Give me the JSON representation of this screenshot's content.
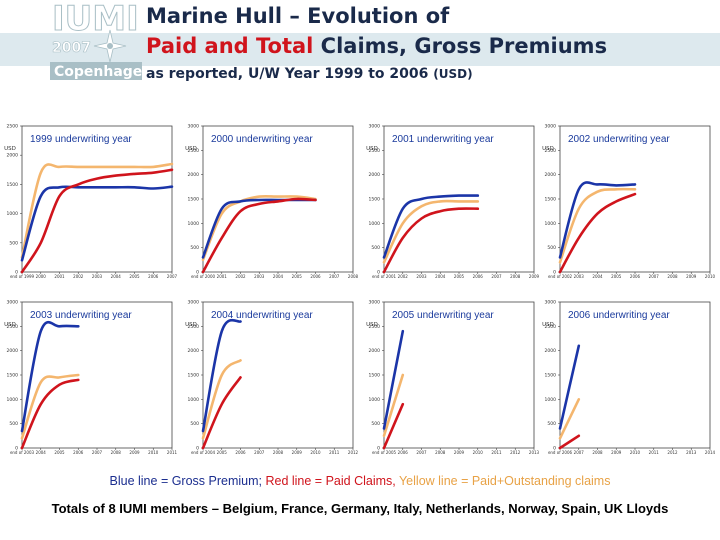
{
  "header": {
    "title_line1": "Marine Hull – Evolution of",
    "title_line2_red": "Paid and Total",
    "title_line2_rest": " Claims, Gross Premiums",
    "subtitle_main": "as reported, U/W Year 1999 to 2006 ",
    "subtitle_small": "(USD)"
  },
  "logo": {
    "text_top": "IUMI",
    "text_year": "2007",
    "text_city": "Copenhagen"
  },
  "colors": {
    "premium": "#1b35a8",
    "paid": "#d0141c",
    "outstanding": "#f4b66e",
    "navy": "#1a2a4a"
  },
  "legend": {
    "blue": "Blue line = Gross Premium;",
    "red": " Red line = Paid Claims,",
    "yellow": " Yellow line = Paid+Outstanding claims"
  },
  "footer": "Totals of 8 IUMI members –  Belgium, France, Germany, Italy, Netherlands, Norway, Spain, UK Lloyds",
  "chart_data": [
    {
      "type": "line",
      "title": "1999 underwriting year",
      "ylabel": "USD",
      "ylim": [
        0,
        2500
      ],
      "yticks": [
        "0",
        "500",
        "1000",
        "1500",
        "2000",
        "2500"
      ],
      "xticks": [
        "end of 1999",
        "2000",
        "2001",
        "2002",
        "2003",
        "2004",
        "2005",
        "2006",
        "2007"
      ],
      "series": [
        {
          "name": "Gross Premium",
          "values": [
            200,
            1300,
            1450,
            1450,
            1450,
            1450,
            1450,
            1430,
            1460
          ]
        },
        {
          "name": "Paid Claims",
          "values": [
            0,
            500,
            1300,
            1500,
            1600,
            1650,
            1680,
            1700,
            1750
          ]
        },
        {
          "name": "Paid+Outstanding claims",
          "values": [
            250,
            1700,
            1800,
            1800,
            1800,
            1800,
            1800,
            1800,
            1850
          ]
        }
      ]
    },
    {
      "type": "line",
      "title": "2000 underwriting year",
      "ylabel": "USD",
      "ylim": [
        0,
        3000
      ],
      "yticks": [
        "0",
        "500",
        "1000",
        "1500",
        "2000",
        "2500",
        "3000"
      ],
      "xticks": [
        "end of 2000",
        "2001",
        "2002",
        "2003",
        "2004",
        "2005",
        "2006",
        "2007",
        "2008"
      ],
      "series": [
        {
          "name": "Gross Premium",
          "values": [
            300,
            1300,
            1450,
            1480,
            1480,
            1480,
            1480
          ]
        },
        {
          "name": "Paid Claims",
          "values": [
            0,
            700,
            1250,
            1400,
            1450,
            1500,
            1480
          ]
        },
        {
          "name": "Paid+Outstanding claims",
          "values": [
            250,
            1200,
            1450,
            1550,
            1550,
            1550,
            1500
          ]
        }
      ]
    },
    {
      "type": "line",
      "title": "2001 underwriting year",
      "ylabel": "USD",
      "ylim": [
        0,
        3000
      ],
      "yticks": [
        "0",
        "500",
        "1000",
        "1500",
        "2000",
        "2500",
        "3000"
      ],
      "xticks": [
        "end of 2001",
        "2002",
        "2003",
        "2004",
        "2005",
        "2006",
        "2007",
        "2008",
        "2009"
      ],
      "series": [
        {
          "name": "Gross Premium",
          "values": [
            300,
            1300,
            1500,
            1550,
            1570,
            1570
          ]
        },
        {
          "name": "Paid Claims",
          "values": [
            0,
            700,
            1100,
            1250,
            1300,
            1300
          ]
        },
        {
          "name": "Paid+Outstanding claims",
          "values": [
            200,
            1000,
            1350,
            1450,
            1450,
            1450
          ]
        }
      ]
    },
    {
      "type": "line",
      "title": "2002 underwriting year",
      "ylabel": "USD",
      "ylim": [
        0,
        3000
      ],
      "yticks": [
        "0",
        "500",
        "1000",
        "1500",
        "2000",
        "2500",
        "3000"
      ],
      "xticks": [
        "end of 2002",
        "2003",
        "2004",
        "2005",
        "2006",
        "2007",
        "2008",
        "2009",
        "2010"
      ],
      "series": [
        {
          "name": "Gross Premium",
          "values": [
            300,
            1700,
            1800,
            1780,
            1800
          ]
        },
        {
          "name": "Paid Claims",
          "values": [
            0,
            700,
            1200,
            1450,
            1600
          ]
        },
        {
          "name": "Paid+Outstanding claims",
          "values": [
            200,
            1300,
            1650,
            1700,
            1700
          ]
        }
      ]
    },
    {
      "type": "line",
      "title": "2003 underwriting year",
      "ylabel": "USD",
      "ylim": [
        0,
        3000
      ],
      "yticks": [
        "0",
        "500",
        "1000",
        "1500",
        "2000",
        "2500",
        "3000"
      ],
      "xticks": [
        "end of 2003",
        "2004",
        "2005",
        "2006",
        "2007",
        "2008",
        "2009",
        "2010",
        "2011"
      ],
      "series": [
        {
          "name": "Gross Premium",
          "values": [
            350,
            2400,
            2500,
            2500
          ]
        },
        {
          "name": "Paid Claims",
          "values": [
            0,
            900,
            1300,
            1400
          ]
        },
        {
          "name": "Paid+Outstanding claims",
          "values": [
            200,
            1350,
            1450,
            1500
          ]
        }
      ]
    },
    {
      "type": "line",
      "title": "2004 underwriting year",
      "ylabel": "USD",
      "ylim": [
        0,
        3000
      ],
      "yticks": [
        "0",
        "500",
        "1000",
        "1500",
        "2000",
        "2500",
        "3000"
      ],
      "xticks": [
        "end of 2004",
        "2005",
        "2006",
        "2007",
        "2008",
        "2009",
        "2010",
        "2011",
        "2012"
      ],
      "series": [
        {
          "name": "Gross Premium",
          "values": [
            350,
            2400,
            2600
          ]
        },
        {
          "name": "Paid Claims",
          "values": [
            0,
            900,
            1450
          ]
        },
        {
          "name": "Paid+Outstanding claims",
          "values": [
            200,
            1500,
            1800
          ]
        }
      ]
    },
    {
      "type": "line",
      "title": "2005 underwriting year",
      "ylabel": "USD",
      "ylim": [
        0,
        3000
      ],
      "yticks": [
        "0",
        "500",
        "1000",
        "1500",
        "2000",
        "2500",
        "3000"
      ],
      "xticks": [
        "end of 2005",
        "2006",
        "2007",
        "2008",
        "2009",
        "2010",
        "2011",
        "2012",
        "2013"
      ],
      "series": [
        {
          "name": "Gross Premium",
          "values": [
            400,
            2400
          ]
        },
        {
          "name": "Paid Claims",
          "values": [
            0,
            900
          ]
        },
        {
          "name": "Paid+Outstanding claims",
          "values": [
            250,
            1500
          ]
        }
      ]
    },
    {
      "type": "line",
      "title": "2006 underwriting year",
      "ylabel": "USD",
      "ylim": [
        0,
        3000
      ],
      "yticks": [
        "0",
        "500",
        "1000",
        "1500",
        "2000",
        "2500",
        "3000"
      ],
      "xticks": [
        "end of 2006",
        "2007",
        "2008",
        "2009",
        "2010",
        "2011",
        "2012",
        "2013",
        "2014"
      ],
      "series": [
        {
          "name": "Gross Premium",
          "values": [
            400,
            2100
          ]
        },
        {
          "name": "Paid Claims",
          "values": [
            0,
            250
          ]
        },
        {
          "name": "Paid+Outstanding claims",
          "values": [
            200,
            1000
          ]
        }
      ]
    }
  ]
}
